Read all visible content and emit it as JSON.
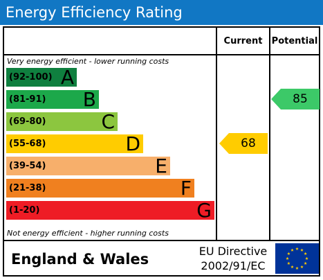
{
  "header": {
    "title": "Energy Efficiency Rating"
  },
  "columns": {
    "current": "Current",
    "potential": "Potential"
  },
  "notes": {
    "top": "Very energy efficient - lower running costs",
    "bottom": "Not energy efficient - higher running costs"
  },
  "chart_data": {
    "type": "bar",
    "title": "Energy Efficiency Rating",
    "bands": [
      {
        "range": "(92-100)",
        "letter": "A",
        "color": "#0f7f3f"
      },
      {
        "range": "(81-91)",
        "letter": "B",
        "color": "#1ca84a"
      },
      {
        "range": "(69-80)",
        "letter": "C",
        "color": "#8cc63f"
      },
      {
        "range": "(55-68)",
        "letter": "D",
        "color": "#ffcc00"
      },
      {
        "range": "(39-54)",
        "letter": "E",
        "color": "#f7af6b"
      },
      {
        "range": "(21-38)",
        "letter": "F",
        "color": "#f0801f"
      },
      {
        "range": "(1-20)",
        "letter": "G",
        "color": "#ee1c25"
      }
    ],
    "current": {
      "value": "68",
      "band": "D",
      "color": "#ffcc00"
    },
    "potential": {
      "value": "85",
      "band": "B",
      "color": "#3cc968"
    }
  },
  "footer": {
    "region": "England & Wales",
    "directive_line1": "EU Directive",
    "directive_line2": "2002/91/EC",
    "flag_icon": "eu-flag-icon"
  }
}
